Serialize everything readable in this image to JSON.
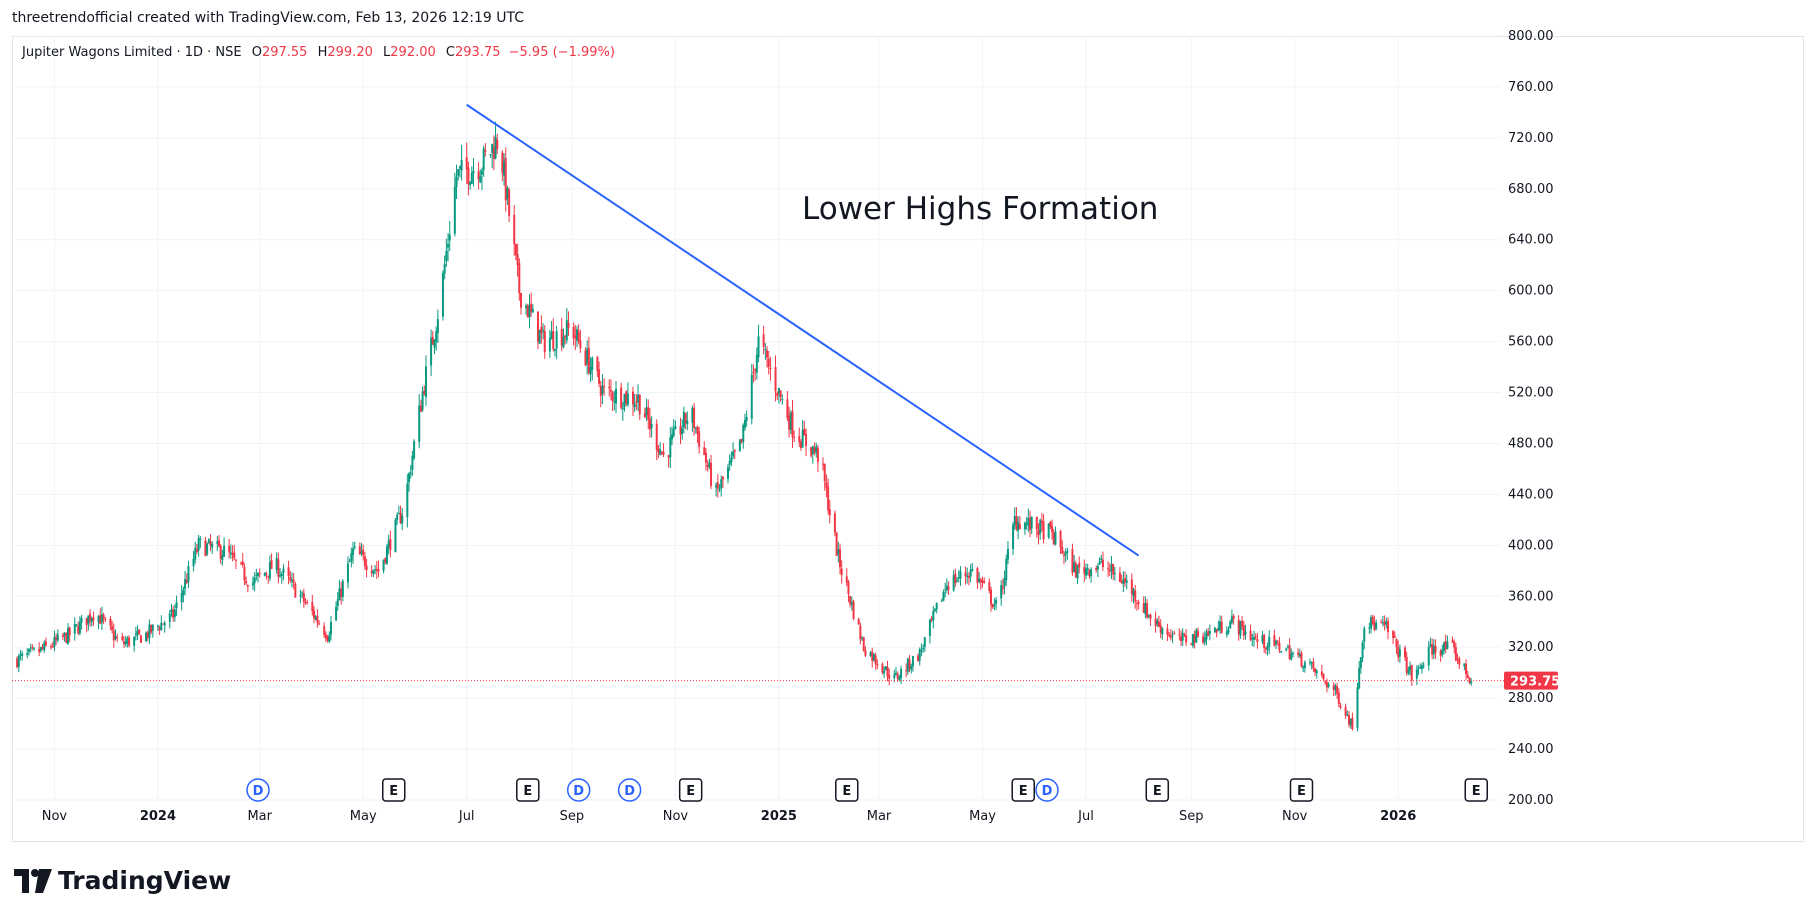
{
  "header": {
    "credit": "threetrendofficial created with TradingView.com, Feb 13, 2026 12:19 UTC"
  },
  "legend": {
    "symbol": "Jupiter Wagons Limited · 1D · NSE",
    "o_label": "O",
    "o_value": "297.55",
    "h_label": "H",
    "h_value": "299.20",
    "l_label": "L",
    "l_value": "292.00",
    "c_label": "C",
    "c_value": "293.75",
    "change": "−5.95 (−1.99%)"
  },
  "brand": {
    "name": "TradingView",
    "logo_icon": "tradingview-logo-icon"
  },
  "colors": {
    "up": "#089981",
    "down": "#f23645",
    "trendline": "#2962ff",
    "grid": "#f0f3fa",
    "axis_text": "#131722",
    "last_price_bg": "#f23645",
    "dividend_badge": "#2962ff",
    "earnings_badge": "#131722"
  },
  "chart_data": {
    "type": "candlestick",
    "symbol": "Jupiter Wagons Limited",
    "interval": "1D",
    "exchange": "NSE",
    "ylim": [
      200,
      800
    ],
    "y_ticks": [
      "800.00",
      "760.00",
      "720.00",
      "680.00",
      "640.00",
      "600.00",
      "560.00",
      "520.00",
      "480.00",
      "440.00",
      "400.00",
      "360.00",
      "320.00",
      "280.00",
      "240.00",
      "200.00"
    ],
    "x_ticks": [
      {
        "label": "Nov",
        "date": "2023-11-01",
        "bold": false
      },
      {
        "label": "2024",
        "date": "2024-01-01",
        "bold": true
      },
      {
        "label": "Mar",
        "date": "2024-03-01",
        "bold": false
      },
      {
        "label": "May",
        "date": "2024-05-01",
        "bold": false
      },
      {
        "label": "Jul",
        "date": "2024-07-01",
        "bold": false
      },
      {
        "label": "Sep",
        "date": "2024-09-01",
        "bold": false
      },
      {
        "label": "Nov",
        "date": "2024-11-01",
        "bold": false
      },
      {
        "label": "2025",
        "date": "2025-01-01",
        "bold": true
      },
      {
        "label": "Mar",
        "date": "2025-03-01",
        "bold": false
      },
      {
        "label": "May",
        "date": "2025-05-01",
        "bold": false
      },
      {
        "label": "Jul",
        "date": "2025-07-01",
        "bold": false
      },
      {
        "label": "Sep",
        "date": "2025-09-01",
        "bold": false
      },
      {
        "label": "Nov",
        "date": "2025-11-01",
        "bold": false
      },
      {
        "label": "2026",
        "date": "2026-01-01",
        "bold": true
      }
    ],
    "x_range": [
      "2023-10-07",
      "2026-03-02"
    ],
    "last_price": "293.75",
    "close_path": [
      {
        "date": "2023-10-10",
        "close": 310
      },
      {
        "date": "2023-10-25",
        "close": 318
      },
      {
        "date": "2023-11-10",
        "close": 330
      },
      {
        "date": "2023-11-25",
        "close": 348
      },
      {
        "date": "2023-12-10",
        "close": 322
      },
      {
        "date": "2023-12-25",
        "close": 330
      },
      {
        "date": "2024-01-10",
        "close": 345
      },
      {
        "date": "2024-01-25",
        "close": 400
      },
      {
        "date": "2024-02-10",
        "close": 395
      },
      {
        "date": "2024-02-25",
        "close": 370
      },
      {
        "date": "2024-03-10",
        "close": 385
      },
      {
        "date": "2024-03-25",
        "close": 360
      },
      {
        "date": "2024-04-10",
        "close": 330
      },
      {
        "date": "2024-04-25",
        "close": 395
      },
      {
        "date": "2024-05-10",
        "close": 380
      },
      {
        "date": "2024-05-25",
        "close": 430
      },
      {
        "date": "2024-06-05",
        "close": 520
      },
      {
        "date": "2024-06-15",
        "close": 590
      },
      {
        "date": "2024-06-25",
        "close": 690
      },
      {
        "date": "2024-07-10",
        "close": 700
      },
      {
        "date": "2024-07-20",
        "close": 720
      },
      {
        "date": "2024-08-01",
        "close": 600
      },
      {
        "date": "2024-08-15",
        "close": 560
      },
      {
        "date": "2024-09-01",
        "close": 570
      },
      {
        "date": "2024-09-20",
        "close": 520
      },
      {
        "date": "2024-10-10",
        "close": 515
      },
      {
        "date": "2024-10-25",
        "close": 470
      },
      {
        "date": "2024-11-10",
        "close": 505
      },
      {
        "date": "2024-11-25",
        "close": 440
      },
      {
        "date": "2024-12-10",
        "close": 480
      },
      {
        "date": "2024-12-20",
        "close": 560
      },
      {
        "date": "2025-01-10",
        "close": 490
      },
      {
        "date": "2025-01-25",
        "close": 470
      },
      {
        "date": "2025-02-05",
        "close": 390
      },
      {
        "date": "2025-02-20",
        "close": 320
      },
      {
        "date": "2025-03-10",
        "close": 295
      },
      {
        "date": "2025-03-25",
        "close": 315
      },
      {
        "date": "2025-04-10",
        "close": 370
      },
      {
        "date": "2025-04-25",
        "close": 380
      },
      {
        "date": "2025-05-10",
        "close": 350
      },
      {
        "date": "2025-05-20",
        "close": 420
      },
      {
        "date": "2025-06-10",
        "close": 410
      },
      {
        "date": "2025-06-25",
        "close": 380
      },
      {
        "date": "2025-07-10",
        "close": 385
      },
      {
        "date": "2025-07-25",
        "close": 370
      },
      {
        "date": "2025-08-10",
        "close": 340
      },
      {
        "date": "2025-08-25",
        "close": 325
      },
      {
        "date": "2025-09-10",
        "close": 330
      },
      {
        "date": "2025-09-25",
        "close": 340
      },
      {
        "date": "2025-10-10",
        "close": 325
      },
      {
        "date": "2025-10-25",
        "close": 320
      },
      {
        "date": "2025-11-10",
        "close": 305
      },
      {
        "date": "2025-11-25",
        "close": 285
      },
      {
        "date": "2025-12-05",
        "close": 258
      },
      {
        "date": "2025-12-12",
        "close": 340
      },
      {
        "date": "2025-12-25",
        "close": 335
      },
      {
        "date": "2026-01-10",
        "close": 295
      },
      {
        "date": "2026-01-20",
        "close": 318
      },
      {
        "date": "2026-02-01",
        "close": 320
      },
      {
        "date": "2026-02-13",
        "close": 293.75
      }
    ],
    "events": [
      {
        "type": "D",
        "date": "2024-02-29"
      },
      {
        "type": "E",
        "date": "2024-05-19"
      },
      {
        "type": "E",
        "date": "2024-08-06"
      },
      {
        "type": "D",
        "date": "2024-09-05"
      },
      {
        "type": "D",
        "date": "2024-10-05"
      },
      {
        "type": "E",
        "date": "2024-11-10"
      },
      {
        "type": "E",
        "date": "2025-02-10"
      },
      {
        "type": "E",
        "date": "2025-05-25"
      },
      {
        "type": "D",
        "date": "2025-06-08"
      },
      {
        "type": "E",
        "date": "2025-08-12"
      },
      {
        "type": "E",
        "date": "2025-11-05"
      },
      {
        "type": "E",
        "date": "2026-02-16"
      }
    ],
    "trendline": {
      "from": {
        "date": "2024-07-01",
        "price": 746
      },
      "to": {
        "date": "2025-08-01",
        "price": 392
      }
    },
    "annotation": "Lower Highs Formation"
  }
}
